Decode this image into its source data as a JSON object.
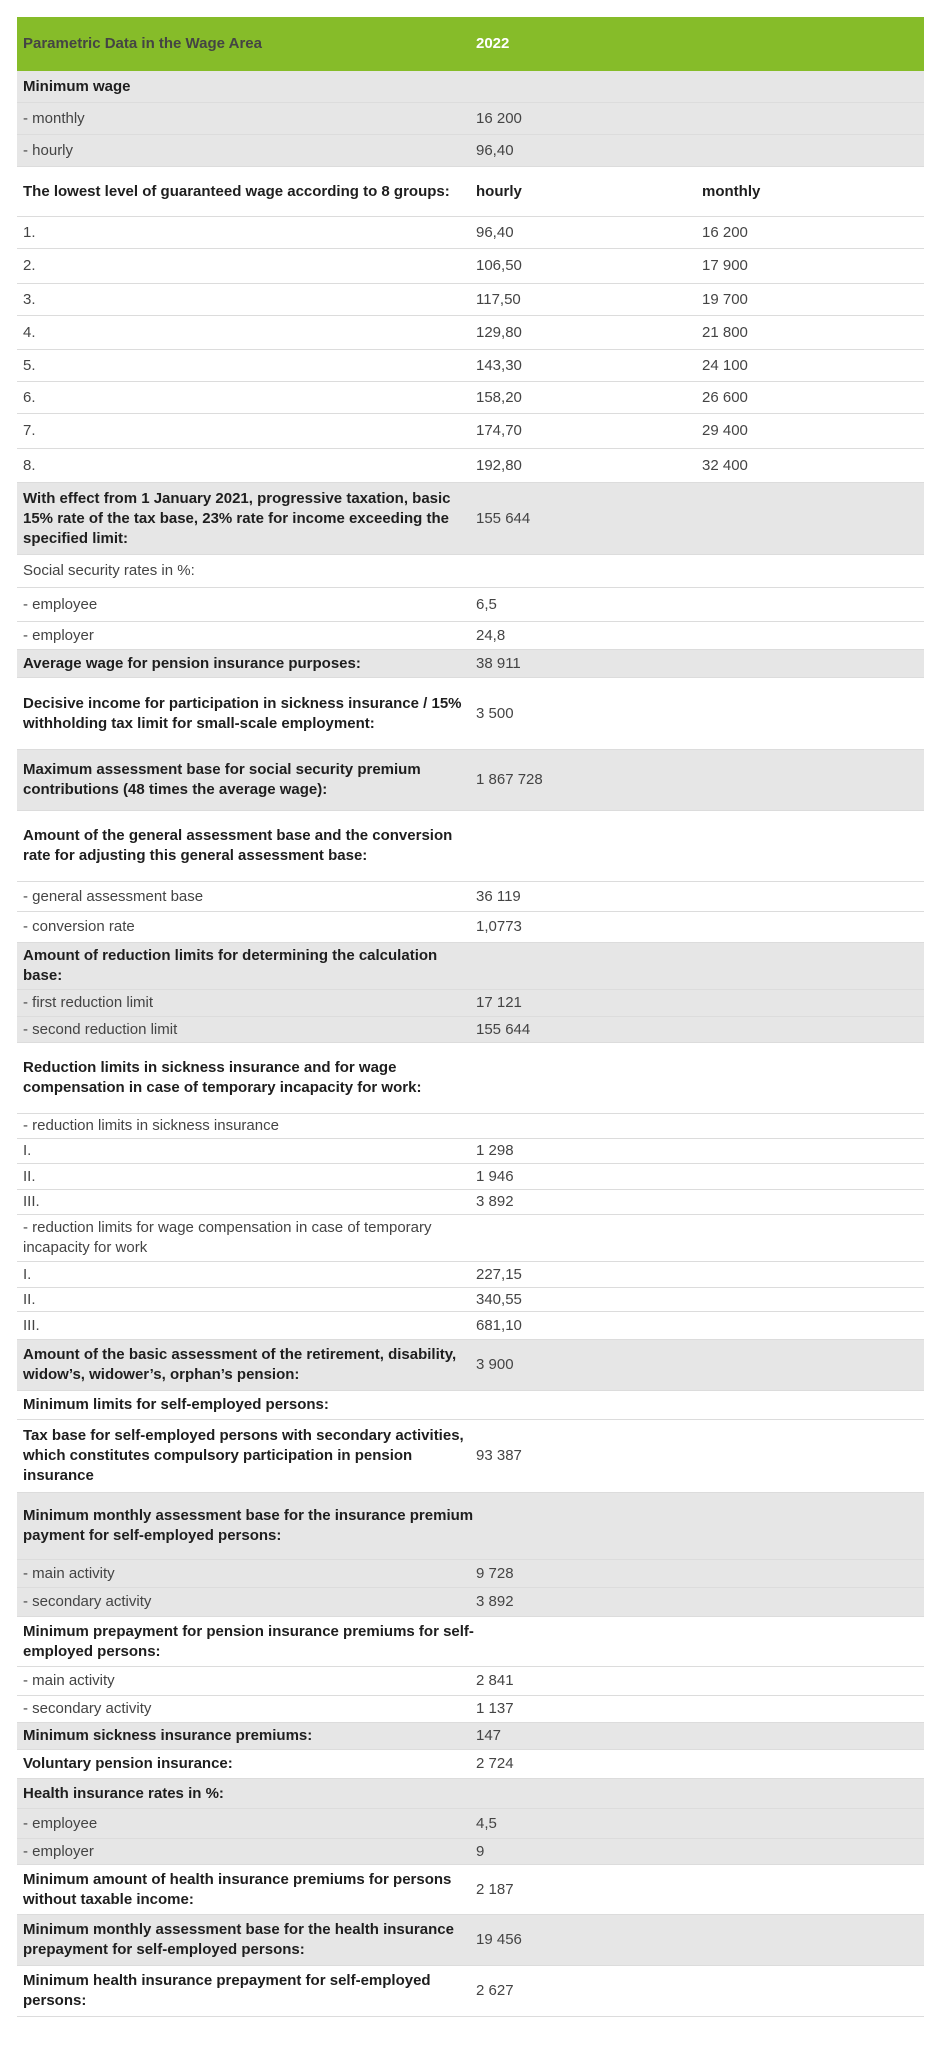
{
  "table": {
    "header": [
      "Parametric Data in the Wage Area",
      "2022"
    ],
    "accent_color": "#86bc29",
    "rows": [
      {
        "label": "Minimum wage",
        "values": []
      },
      {
        "label": "-  monthly",
        "values": [
          "16 200"
        ]
      },
      {
        "label": "-  hourly",
        "values": [
          "96,40"
        ]
      },
      {
        "label": "The lowest level of guaranteed wage according to 8 groups:",
        "values": [
          "hourly",
          "monthly"
        ]
      },
      {
        "label": "1.",
        "values": [
          "96,40",
          "16 200"
        ]
      },
      {
        "label": "2.",
        "values": [
          "106,50",
          "17 900"
        ]
      },
      {
        "label": "3.",
        "values": [
          "117,50",
          "19 700"
        ]
      },
      {
        "label": "4.",
        "values": [
          "129,80",
          "21 800"
        ]
      },
      {
        "label": "5.",
        "values": [
          "143,30",
          "24 100"
        ]
      },
      {
        "label": "6.",
        "values": [
          "158,20",
          "26 600"
        ]
      },
      {
        "label": "7.",
        "values": [
          "174,70",
          "29 400"
        ]
      },
      {
        "label": "8.",
        "values": [
          "192,80",
          "32 400"
        ]
      },
      {
        "label": "With effect from 1 January 2021, progressive taxation, basic 15% rate of the tax base, 23% rate for income exceeding the specified limit:",
        "values": [
          "155 644"
        ]
      },
      {
        "label": "Social security rates in %:",
        "values": []
      },
      {
        "label": "-  employee",
        "values": [
          "6,5"
        ]
      },
      {
        "label": "-  employer",
        "values": [
          "24,8"
        ]
      },
      {
        "label": "Average wage for pension insurance purposes:",
        "values": [
          "38 911"
        ]
      },
      {
        "label": "Decisive income for participation in sickness insurance / 15% withholding tax limit for small-scale employment:",
        "values": [
          "3 500"
        ]
      },
      {
        "label": "Maximum assessment base for social security premium contributions (48 times the average wage):",
        "values": [
          "1 867 728"
        ]
      },
      {
        "label": "Amount of the general assessment base and the conversion rate for adjusting this general assessment base:",
        "values": []
      },
      {
        "label": "-  general assessment base",
        "values": [
          "36 119"
        ]
      },
      {
        "label": "-  conversion rate",
        "values": [
          "1,0773"
        ]
      },
      {
        "label": "Amount of reduction limits for determining the calculation base:",
        "values": []
      },
      {
        "label": "-  first reduction limit",
        "values": [
          "17 121"
        ]
      },
      {
        "label": "-  second reduction limit",
        "values": [
          "155 644"
        ]
      },
      {
        "label": "Reduction limits in sickness insurance and for wage compensation in case of temporary incapacity for work:",
        "values": []
      },
      {
        "label": "-  reduction limits in sickness insurance",
        "values": []
      },
      {
        "label": "I.",
        "values": [
          "1 298"
        ]
      },
      {
        "label": "II.",
        "values": [
          "1 946"
        ]
      },
      {
        "label": "III.",
        "values": [
          "3 892"
        ]
      },
      {
        "label": "-  reduction limits for wage compensation in case of temporary incapacity for work",
        "values": []
      },
      {
        "label": "I.",
        "values": [
          "227,15"
        ]
      },
      {
        "label": "II.",
        "values": [
          "340,55"
        ]
      },
      {
        "label": "III.",
        "values": [
          "681,10"
        ]
      },
      {
        "label": "Amount of the basic assessment of the retirement, disability, widow’s, widower’s, orphan’s pension:",
        "values": [
          "3 900"
        ]
      },
      {
        "label": "Minimum limits for self-employed persons:",
        "values": []
      },
      {
        "label": "Tax base for self-employed persons with secondary activities, which constitutes compulsory participation in pension insurance",
        "values": [
          "93 387"
        ]
      },
      {
        "label": "Minimum monthly assessment base for the insurance premium payment for self-employed persons:",
        "values": []
      },
      {
        "label": "-  main activity",
        "values": [
          "9 728"
        ]
      },
      {
        "label": "-  secondary activity",
        "values": [
          "3 892"
        ]
      },
      {
        "label": "Minimum prepayment for pension insurance premiums for self-employed persons:",
        "values": []
      },
      {
        "label": "-  main activity",
        "values": [
          "2 841"
        ]
      },
      {
        "label": "-  secondary activity",
        "values": [
          "1 137"
        ]
      },
      {
        "label": "Minimum sickness insurance premiums:",
        "values": [
          "147"
        ]
      },
      {
        "label": "Voluntary pension insurance:",
        "values": [
          "2 724"
        ]
      },
      {
        "label": "Health insurance rates in %:",
        "values": []
      },
      {
        "label": "-  employee",
        "values": [
          "4,5"
        ]
      },
      {
        "label": "-  employer",
        "values": [
          "9"
        ]
      },
      {
        "label": "Minimum amount of health insurance premiums for persons without taxable income:",
        "values": [
          "2 187"
        ]
      },
      {
        "label": "Minimum monthly assessment base for the health insurance prepayment for self-employed persons:",
        "values": [
          "19 456"
        ]
      },
      {
        "label": "Minimum health insurance prepayment for self-employed persons:",
        "values": [
          "2 627"
        ]
      }
    ]
  }
}
